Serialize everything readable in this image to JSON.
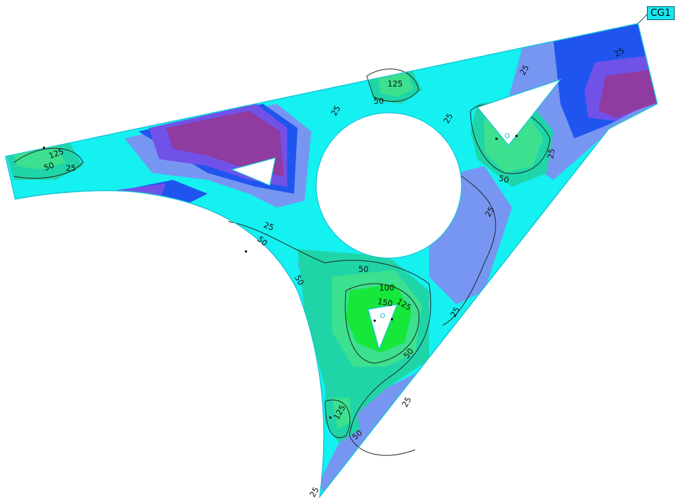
{
  "tag": {
    "text": "CG1"
  },
  "contour_labels": [
    "25",
    "50",
    "100",
    "125",
    "150"
  ],
  "colors": {
    "magenta": "#8f3b9f",
    "violet": "#7152e8",
    "blue": "#1f55ee",
    "periwinkle": "#7696f2",
    "light_blue": "#5bbaf3",
    "cyan": "#15f0f0",
    "teal": "#1fd5a8",
    "mint": "#3ce08e",
    "green": "#15e83b",
    "outline": "#17c4d6",
    "contour": "#222222",
    "background": "#ffffff"
  }
}
